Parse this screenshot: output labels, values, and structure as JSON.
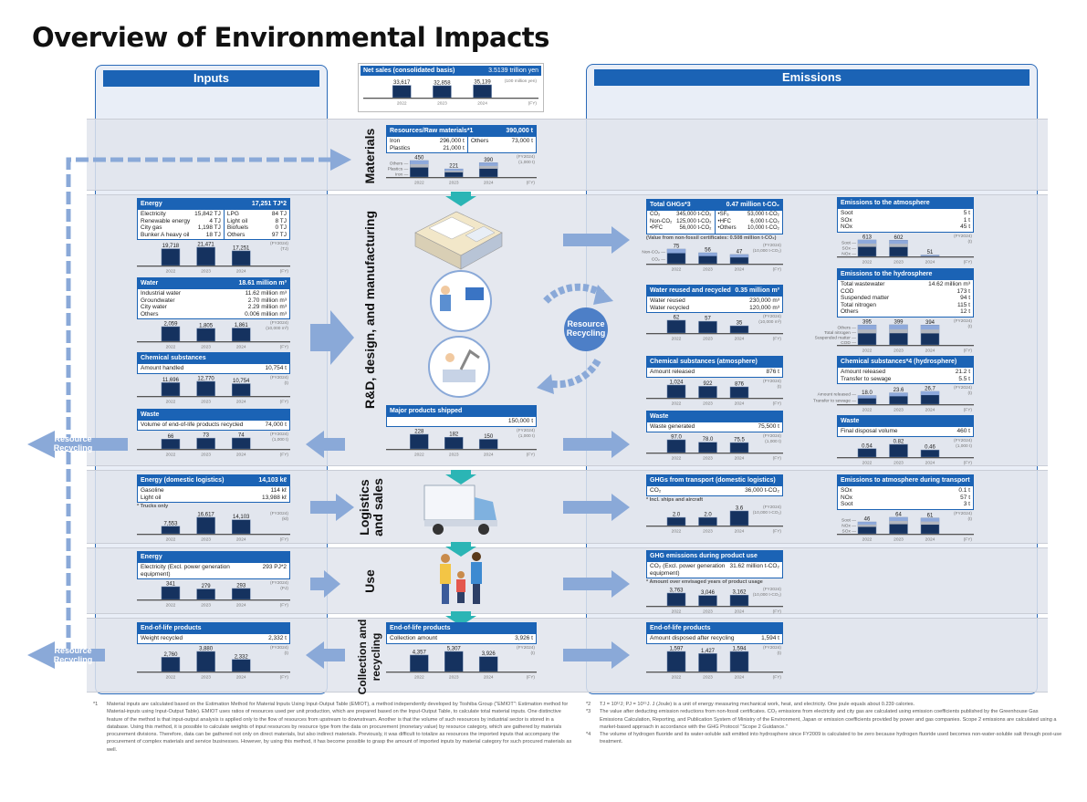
{
  "title": "Overview of Environmental Impacts",
  "inputs_label": "Inputs",
  "emissions_label": "Emissions",
  "years": [
    "2022",
    "2023",
    "2024"
  ],
  "fy": "(FY)",
  "stages": {
    "materials": "Materials",
    "rnd": "R&D, design, and manufacturing",
    "logistics": [
      "Logistics",
      "and sales"
    ],
    "use": "Use",
    "collection": [
      "Collection and",
      "recycling"
    ]
  },
  "recycling": {
    "left_top": "Resource Recycling",
    "left_bottom": "Resource Recycling",
    "center": "Resource Recycling"
  },
  "net_sales": {
    "title": "Net sales (consolidated basis)",
    "total": "3.5139 trillion yen",
    "unit": "(100 million yen)",
    "values": [
      33617,
      32858,
      35139
    ],
    "labels": [
      "33,617",
      "32,858",
      "35,139"
    ]
  },
  "cards": {
    "energy": {
      "title": "Energy",
      "total": "17,251 TJ*2",
      "cols": [
        [
          [
            "Electricity",
            "15,842 TJ"
          ],
          [
            "Renewable energy",
            "4 TJ"
          ],
          [
            "City gas",
            "1,198 TJ"
          ],
          [
            "Bunker A heavy oil",
            "18 TJ"
          ]
        ],
        [
          [
            "LPG",
            "84 TJ"
          ],
          [
            "Light oil",
            "8 TJ"
          ],
          [
            "Biofuels",
            "0 TJ"
          ],
          [
            "Others",
            "97 TJ"
          ]
        ]
      ],
      "unit": [
        "(FY2024)",
        "(TJ)"
      ],
      "values": [
        19718,
        21471,
        17251
      ],
      "labels": [
        "19,718",
        "21,471",
        "17,251"
      ]
    },
    "water": {
      "title": "Water",
      "total": "18.61 million m³",
      "cols": [
        [
          [
            "Industrial water",
            "11.62 million m³"
          ],
          [
            "Groundwater",
            "2.70 million m³"
          ]
        ],
        [
          [
            "City water",
            "2.29 million m³"
          ],
          [
            "Others",
            "0.006 million m³"
          ]
        ]
      ],
      "unit": [
        "(FY2024)",
        "(10,000 m³)"
      ],
      "values": [
        2059,
        1805,
        1861
      ],
      "labels": [
        "2,059",
        "1,805",
        "1,861"
      ]
    },
    "chem_in": {
      "title": "Chemical substances",
      "total": "",
      "cols": [
        [
          [
            "Amount handled",
            "10,754 t"
          ]
        ]
      ],
      "unit": [
        "(FY2024)",
        "(t)"
      ],
      "values": [
        11696,
        12770,
        10754
      ],
      "labels": [
        "11,696",
        "12,770",
        "10,754"
      ]
    },
    "waste_in": {
      "title": "Waste",
      "total": "",
      "cols": [
        [
          [
            "Volume of end-of-life products recycled",
            "74,000 t"
          ]
        ]
      ],
      "unit": [
        "(FY2024)",
        "(1,000 t)"
      ],
      "values": [
        66,
        73,
        74
      ],
      "labels": [
        "66",
        "73",
        "74"
      ]
    },
    "energy_log": {
      "title": "Energy (domestic logistics)",
      "total": "14,103 kℓ",
      "cols": [
        [
          [
            "Gasoline",
            "114 kℓ"
          ],
          [
            "Light oil",
            "13,988 kℓ"
          ]
        ]
      ],
      "note": "* Trucks only",
      "unit": [
        "(FY2024)",
        "(kℓ)"
      ],
      "values": [
        7553,
        16617,
        14103
      ],
      "labels": [
        "7,553",
        "16,617",
        "14,103"
      ]
    },
    "energy_use": {
      "title": "Energy",
      "total": "",
      "cols": [
        [
          [
            "Electricity (Excl. power generation equipment)",
            "293 PJ*2"
          ]
        ]
      ],
      "unit": [
        "(FY2024)",
        "(PJ)"
      ],
      "values": [
        341,
        279,
        293
      ],
      "labels": [
        "341",
        "279",
        "293"
      ]
    },
    "eol_in": {
      "title": "End-of-life products",
      "total": "",
      "cols": [
        [
          [
            "Weight recycled",
            "2,332 t"
          ]
        ]
      ],
      "unit": [
        "(FY2024)",
        "(t)"
      ],
      "values": [
        2760,
        3880,
        2332
      ],
      "labels": [
        "2,760",
        "3,880",
        "2,332"
      ]
    },
    "materials": {
      "title": "Resources/Raw materials*1",
      "total": "390,000 t",
      "cols": [
        [
          [
            "Iron",
            "296,000 t"
          ],
          [
            "Plastics",
            "21,000 t"
          ]
        ],
        [
          [
            "Others",
            "73,000 t"
          ]
        ]
      ],
      "unit": [
        "(FY2024)",
        "(1,000 t)"
      ],
      "values": [
        450,
        221,
        390
      ],
      "labels": [
        "450",
        "221",
        "390"
      ],
      "stack_labels": [
        "Others",
        "Plastics",
        "Iron"
      ]
    },
    "shipped": {
      "title": "Major products shipped",
      "total": "",
      "cols": [
        [
          [
            "",
            "150,000 t"
          ]
        ]
      ],
      "unit": [
        "(FY2024)",
        "(1,000 t)"
      ],
      "values": [
        228,
        182,
        150
      ],
      "labels": [
        "228",
        "182",
        "150"
      ]
    },
    "collection": {
      "title": "End-of-life products",
      "total": "",
      "cols": [
        [
          [
            "Collection amount",
            "3,926 t"
          ]
        ]
      ],
      "unit": [
        "(FY2024)",
        "(t)"
      ],
      "values": [
        4357,
        5307,
        3926
      ],
      "labels": [
        "4,357",
        "5,307",
        "3,926"
      ]
    },
    "ghg": {
      "title": "Total GHGs*3",
      "total": "0.47 million t-CO₂",
      "cols": [
        [
          [
            "CO₂",
            "345,000 t-CO₂"
          ],
          [
            "Non-CO₂",
            "125,000 t-CO₂"
          ],
          [
            "•PFC",
            "56,000 t-CO₂"
          ]
        ],
        [
          [
            "•SF₆",
            "53,000 t-CO₂"
          ],
          [
            "•HFC",
            "6,000 t-CO₂"
          ],
          [
            "•Others",
            "10,000 t-CO₂"
          ]
        ]
      ],
      "note": "(Value from non-fossil certificates: 0.508 million t-CO₂)",
      "unit": [
        "(FY2024)",
        "(10,000 t-CO₂)"
      ],
      "values": [
        75,
        56,
        47
      ],
      "labels": [
        "75",
        "56",
        "47"
      ],
      "stack_labels": [
        "Non-CO₂",
        "CO₂"
      ]
    },
    "water_re": {
      "title": "Water reused and recycled",
      "total": "0.35 million m³",
      "cols": [
        [
          [
            "Water reused",
            "230,000 m³"
          ],
          [
            "Water recycled",
            "120,000 m³"
          ]
        ]
      ],
      "unit": [
        "(FY2024)",
        "(10,000 m³)"
      ],
      "values": [
        62,
        57,
        35
      ],
      "labels": [
        "62",
        "57",
        "35"
      ]
    },
    "chem_atm": {
      "title": "Chemical substances (atmosphere)",
      "total": "",
      "cols": [
        [
          [
            "Amount released",
            "876 t"
          ]
        ]
      ],
      "unit": [
        "(FY2024)",
        "(t)"
      ],
      "values": [
        1024,
        922,
        876
      ],
      "labels": [
        "1,024",
        "922",
        "876"
      ]
    },
    "waste_out": {
      "title": "Waste",
      "total": "",
      "cols": [
        [
          [
            "Waste generated",
            "75,500 t"
          ]
        ]
      ],
      "unit": [
        "(FY2024)",
        "(1,000 t)"
      ],
      "values": [
        97.0,
        78.0,
        75.5
      ],
      "labels": [
        "97.0",
        "78.0",
        "75.5"
      ]
    },
    "ghg_trans": {
      "title": "GHGs from transport (domestic logistics)",
      "total": "",
      "cols": [
        [
          [
            "CO₂",
            "36,000 t-CO₂"
          ]
        ]
      ],
      "note": "* Incl. ships and aircraft",
      "unit": [
        "(FY2024)",
        "(10,000 t-CO₂)"
      ],
      "values": [
        2.0,
        2.0,
        3.6
      ],
      "labels": [
        "2.0",
        "2.0",
        "3.6"
      ]
    },
    "ghg_use": {
      "title": "GHG emissions during product use",
      "total": "",
      "cols": [
        [
          [
            "CO₂ (Excl. power generation equipment)",
            "31.62 million t-CO₂"
          ]
        ]
      ],
      "note": "* Amount over envisaged years of product usage",
      "unit": [
        "(FY2024)",
        "(10,000 t-CO₂)"
      ],
      "values": [
        3763,
        3046,
        3162
      ],
      "labels": [
        "3,763",
        "3,046",
        "3,162"
      ]
    },
    "eol_out": {
      "title": "End-of-life products",
      "total": "",
      "cols": [
        [
          [
            "Amount disposed after recycling",
            "1,594 t"
          ]
        ]
      ],
      "unit": [
        "(FY2024)",
        "(t)"
      ],
      "values": [
        1597,
        1427,
        1594
      ],
      "labels": [
        "1,597",
        "1,427",
        "1,594"
      ]
    },
    "atm": {
      "title": "Emissions to the atmosphere",
      "total": "",
      "cols": [
        [
          [
            "Soot",
            "5 t"
          ],
          [
            "SOx",
            "1 t"
          ],
          [
            "NOx",
            "45 t"
          ]
        ]
      ],
      "unit": [
        "(FY2024)",
        "(t)"
      ],
      "values": [
        613,
        602,
        51
      ],
      "labels": [
        "613",
        "602",
        "51"
      ],
      "stack_labels": [
        "Soot",
        "SOx",
        "NOx"
      ]
    },
    "hydro": {
      "title": "Emissions to the hydrosphere",
      "total": "",
      "cols": [
        [
          [
            "Total wastewater",
            "14.62 million m³"
          ],
          [
            "COD",
            "173 t"
          ],
          [
            "Suspended matter",
            "94 t"
          ]
        ],
        [
          [
            "Total nitrogen",
            "115 t"
          ],
          [
            "Others",
            "12 t"
          ]
        ]
      ],
      "unit": [
        "(FY2024)",
        "(t)"
      ],
      "values": [
        395,
        399,
        394
      ],
      "labels": [
        "395",
        "399",
        "394"
      ],
      "stack_labels": [
        "Others",
        "Total nitrogen",
        "Suspended matter",
        "COD"
      ]
    },
    "chem_hydro": {
      "title": "Chemical substances*4 (hydrosphere)",
      "total": "",
      "cols": [
        [
          [
            "Amount released",
            "21.2 t"
          ],
          [
            "Transfer to sewage",
            "5.5 t"
          ]
        ]
      ],
      "unit": [
        "(FY2024)",
        "(t)"
      ],
      "values": [
        18.0,
        23.6,
        26.7
      ],
      "labels": [
        "18.0",
        "23.6",
        "26.7"
      ],
      "stack_labels": [
        "Amount released",
        "Transfer to sewage"
      ]
    },
    "waste_final": {
      "title": "Waste",
      "total": "",
      "cols": [
        [
          [
            "Final disposal volume",
            "460 t"
          ]
        ]
      ],
      "unit": [
        "(FY2024)",
        "(1,000 t)"
      ],
      "values": [
        0.54,
        0.82,
        0.46
      ],
      "labels": [
        "0.54",
        "0.82",
        "0.46"
      ]
    },
    "trans_atm": {
      "title": "Emissions to atmosphere during transport",
      "total": "",
      "cols": [
        [
          [
            "SOx",
            "0.1 t"
          ],
          [
            "NOx",
            "57 t"
          ],
          [
            "Soot",
            "3 t"
          ]
        ]
      ],
      "unit": [
        "(FY2024)",
        "(t)"
      ],
      "values": [
        46,
        64,
        61
      ],
      "labels": [
        "46",
        "64",
        "61"
      ],
      "stack_labels": [
        "Soot",
        "NOx",
        "SOx"
      ]
    }
  },
  "colors": {
    "brand_blue": "#1b63b5",
    "bar": "#15325f",
    "bar_light": "#8ea9db",
    "bar_grey": "#b3b7bf",
    "arrow": "#8aa9d8",
    "teal": "#2bb5b5"
  },
  "footnotes": [
    {
      "mark": "*1",
      "text": "Material inputs are calculated based on the Estimation Method for Material Inputs Using Input-Output Table (EMIOT), a method independently developed by Toshiba Group (\"EMIOT\": Estimation method for Material-inputs using Input-Output Table). EMIOT uses ratios of resources used per unit production, which are prepared based on the Input-Output Table, to calculate total material inputs. One distinctive feature of the method is that input-output analysis is applied only to the flow of resources from upstream to downstream. Another is that the volume of such resources by industrial sector is stored in a database. Using this method, it is possible to calculate weights of input resources by resource type from the data on procurement (monetary value) by resource category, which are gathered by materials procurement divisions. Therefore, data can be gathered not only on direct materials, but also indirect materials. Previously, it was difficult to totalize as resources the imported inputs that accompany the procurement of complex materials and service businesses. However, by using this method, it has become possible to grasp the amount of imported inputs by material category for such procured materials as well."
    },
    {
      "mark": "*2",
      "text": "TJ = 10¹²J; PJ = 10¹⁵J. J (Joule) is a unit of energy measuring mechanical work, heat, and electricity. One joule equals about 0.239 calories."
    },
    {
      "mark": "*3",
      "text": "The value after deducting emission reductions from non-fossil certificates. CO₂ emissions from electricity and city gas are calculated using emission coefficients published by the Greenhouse Gas Emissions Calculation, Reporting, and Publication System of Ministry of the Environment, Japan or emission coefficients provided by power and gas companies. Scope 2 emissions are calculated using a market-based approach in accordance with the GHG Protocol \"Scope 2 Guidance.\""
    },
    {
      "mark": "*4",
      "text": "The volume of hydrogen fluoride and its water-soluble salt emitted into hydrosphere since FY2009 is calculated to be zero because hydrogen fluoride used becomes non-water-soluble salt through post-use treatment."
    }
  ]
}
